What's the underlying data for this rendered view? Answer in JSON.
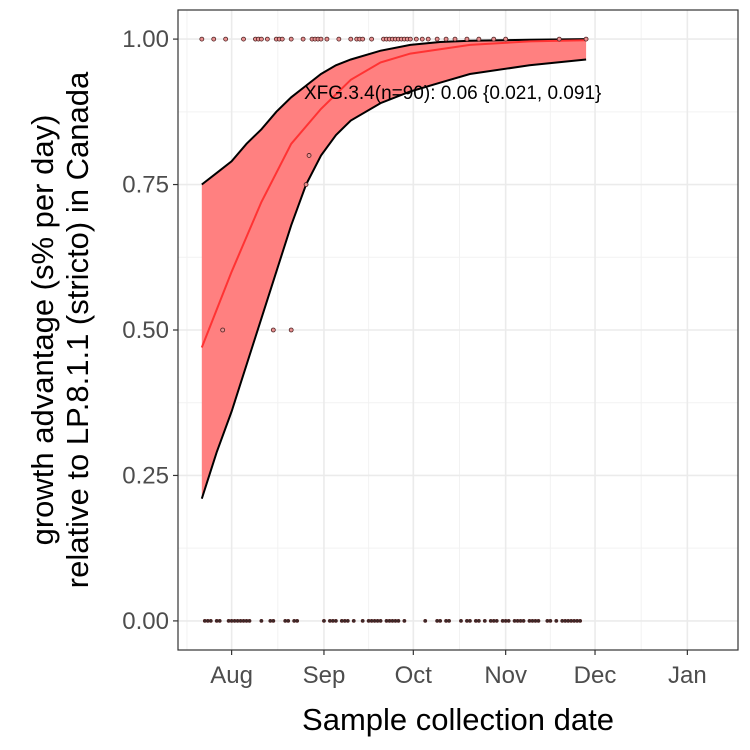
{
  "chart_data": {
    "type": "line",
    "title": "",
    "xlabel": "Sample collection date",
    "ylabel_lines": [
      "growth advantage (s% per day)",
      "relative to LP.8.1.1 (stricto) in Canada"
    ],
    "x_units": "days since Aug 1",
    "xlim": [
      -18,
      170
    ],
    "ylim": [
      -0.05,
      1.05
    ],
    "grid": true,
    "x_ticks": [
      {
        "day": 0,
        "label": "Aug"
      },
      {
        "day": 31,
        "label": "Sep"
      },
      {
        "day": 61,
        "label": "Oct"
      },
      {
        "day": 92,
        "label": "Nov"
      },
      {
        "day": 122,
        "label": "Dec"
      },
      {
        "day": 153,
        "label": "Jan"
      }
    ],
    "y_ticks": [
      {
        "value": 0,
        "label": "0.00"
      },
      {
        "value": 0.25,
        "label": "0.25"
      },
      {
        "value": 0.5,
        "label": "0.50"
      },
      {
        "value": 0.75,
        "label": "0.75"
      },
      {
        "value": 1,
        "label": "1.00"
      }
    ],
    "annotation": "XFG.3.4(n=90): 0.06 {0.021, 0.091}",
    "fit_color": "#ff3333",
    "band_color": "#ff8080",
    "fit": {
      "x": [
        -10,
        0,
        10,
        20,
        30,
        40,
        50,
        60,
        80,
        100,
        119
      ],
      "y": [
        0.47,
        0.6,
        0.72,
        0.82,
        0.88,
        0.93,
        0.96,
        0.975,
        0.99,
        0.996,
        0.998
      ]
    },
    "band_upper": {
      "x": [
        -10,
        -5,
        0,
        5,
        10,
        15,
        20,
        25,
        30,
        35,
        40,
        50,
        60,
        70,
        80,
        100,
        119
      ],
      "y": [
        0.75,
        0.77,
        0.79,
        0.82,
        0.845,
        0.875,
        0.9,
        0.92,
        0.94,
        0.955,
        0.965,
        0.98,
        0.99,
        0.995,
        0.997,
        0.999,
        1.0
      ]
    },
    "band_lower": {
      "x": [
        -10,
        -5,
        0,
        5,
        10,
        15,
        20,
        25,
        30,
        35,
        40,
        50,
        60,
        70,
        80,
        100,
        119
      ],
      "y": [
        0.21,
        0.29,
        0.36,
        0.44,
        0.52,
        0.6,
        0.68,
        0.75,
        0.8,
        0.835,
        0.86,
        0.89,
        0.91,
        0.925,
        0.94,
        0.955,
        0.965
      ]
    },
    "points": [
      {
        "y": 1,
        "days": [
          -10,
          -6,
          -2,
          4,
          8,
          9,
          10,
          12,
          15,
          16,
          17,
          20,
          24,
          27,
          28,
          29,
          30,
          32,
          36,
          40,
          42,
          43,
          44,
          47,
          51,
          52,
          53,
          54,
          55,
          56,
          57,
          58,
          59,
          60,
          62,
          64,
          66,
          69,
          72,
          75,
          79,
          83,
          88,
          92,
          110,
          119
        ]
      },
      {
        "y": 0.8,
        "days": [
          26
        ]
      },
      {
        "y": 0.75,
        "days": [
          25
        ]
      },
      {
        "y": 0.5,
        "days": [
          -3,
          14,
          20
        ]
      },
      {
        "y": 0,
        "days": [
          -9,
          -8,
          -7,
          -5,
          -4,
          -1,
          0,
          1,
          2,
          3,
          4,
          5,
          6,
          10,
          13,
          14,
          18,
          19,
          21,
          22,
          31,
          33,
          34,
          35,
          37,
          38,
          39,
          41,
          44,
          46,
          47,
          48,
          49,
          50,
          52,
          53,
          54,
          55,
          56,
          58,
          65,
          69,
          70,
          72,
          73,
          77,
          79,
          80,
          82,
          83,
          85,
          87,
          88,
          89,
          91,
          92,
          93,
          95,
          96,
          97,
          98,
          100,
          101,
          102,
          103,
          106,
          107,
          109,
          111,
          112,
          113,
          114,
          115,
          116,
          117
        ]
      }
    ]
  }
}
